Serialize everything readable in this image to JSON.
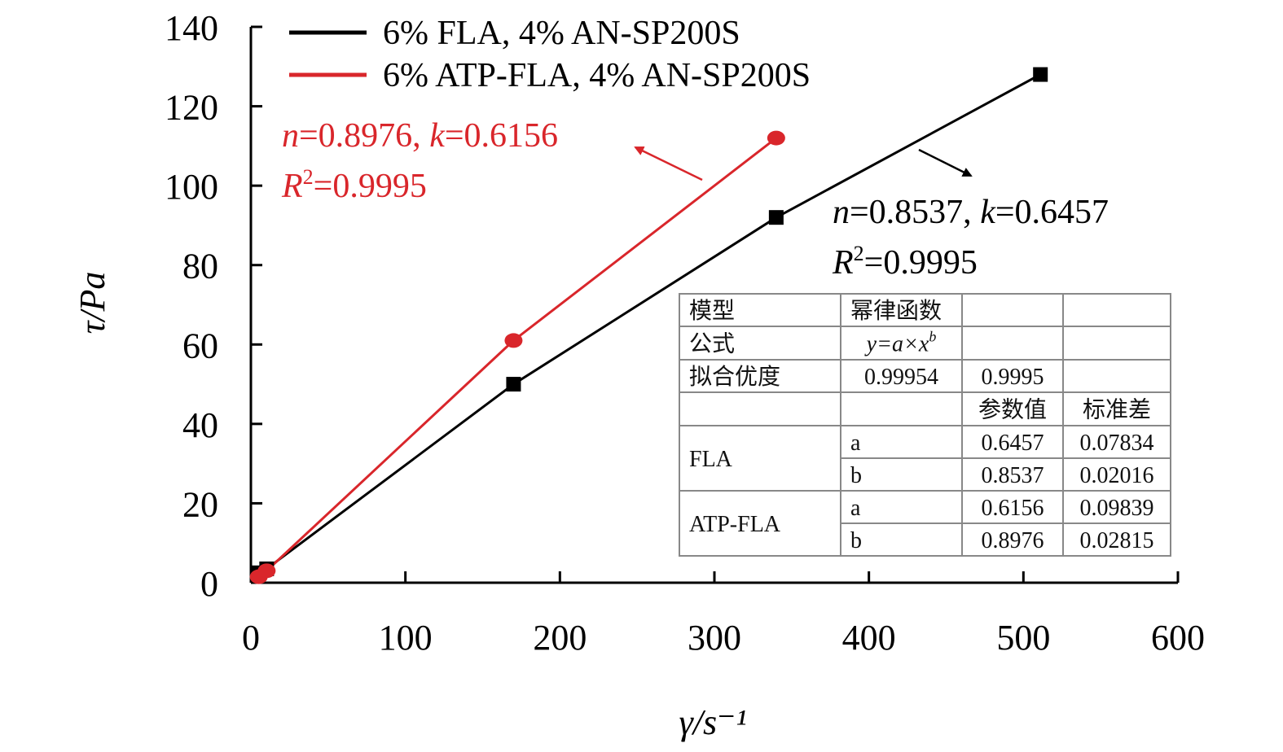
{
  "chart_data": {
    "type": "line",
    "xlabel": "γ/s⁻¹",
    "ylabel": "τ/Pa",
    "xlim": [
      0,
      600
    ],
    "ylim": [
      0,
      140
    ],
    "x_ticks": [
      0,
      100,
      200,
      300,
      400,
      500,
      600
    ],
    "y_ticks": [
      0,
      20,
      40,
      60,
      80,
      100,
      120,
      140
    ],
    "legend_position": "top-left",
    "series": [
      {
        "name": "6% FLA, 4% AN-SP200S",
        "color": "#000000",
        "marker": "square",
        "points": [
          [
            5.1,
            2.5
          ],
          [
            10.2,
            3.5
          ],
          [
            170,
            50
          ],
          [
            340,
            92
          ],
          [
            511,
            128
          ]
        ]
      },
      {
        "name": "6% ATP-FLA, 4% AN-SP200S",
        "color": "#d9262b",
        "marker": "circle",
        "points": [
          [
            5.1,
            1.5
          ],
          [
            10.2,
            3.0
          ],
          [
            170,
            61
          ],
          [
            340,
            112
          ]
        ]
      }
    ],
    "annotations": [
      {
        "series": 1,
        "color": "#d9262b",
        "n_label": "n",
        "n_value": "=0.8976, ",
        "k_label": "k",
        "k_value": "=0.6156",
        "r_label": "R",
        "r_sup": "2",
        "r_value": "=0.9995"
      },
      {
        "series": 0,
        "color": "#000000",
        "n_label": "n",
        "n_value": "=0.8537, ",
        "k_label": "k",
        "k_value": "=0.6457",
        "r_label": "R",
        "r_sup": "2",
        "r_value": "=0.9995"
      }
    ],
    "fit_table": {
      "rows": [
        [
          "模型",
          "幂律函数",
          "",
          ""
        ],
        [
          "公式",
          "y=a×x^b",
          "",
          ""
        ],
        [
          "拟合优度",
          "0.99954",
          "0.9995",
          ""
        ],
        [
          "",
          "",
          "参数值",
          "标准差"
        ],
        [
          "FLA",
          "a",
          "0.6457",
          "0.07834"
        ],
        [
          "",
          "b",
          "0.8537",
          "0.02016"
        ],
        [
          "ATP-FLA",
          "a",
          "0.6156",
          "0.09839"
        ],
        [
          "",
          "b",
          "0.8976",
          "0.02815"
        ]
      ]
    }
  }
}
